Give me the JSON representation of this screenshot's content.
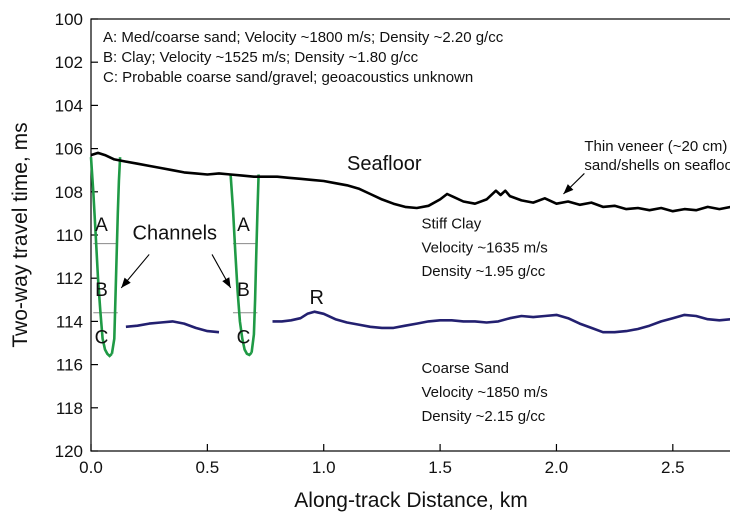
{
  "chart_data": {
    "type": "line",
    "xlabel": "Along-track Distance, km",
    "ylabel": "Two-way travel time, ms",
    "xlim": [
      0,
      2.75
    ],
    "ylim": [
      120,
      100
    ],
    "y_inverted": true,
    "grid": false,
    "x_ticks": [
      "0.0",
      "0.5",
      "1.0",
      "1.5",
      "2.0",
      "2.5"
    ],
    "x_tick_values": [
      0,
      0.5,
      1,
      1.5,
      2,
      2.5
    ],
    "y_ticks": [
      "100",
      "102",
      "104",
      "106",
      "108",
      "110",
      "112",
      "114",
      "116",
      "118",
      "120"
    ],
    "y_tick_values": [
      100,
      102,
      104,
      106,
      108,
      110,
      112,
      114,
      116,
      118,
      120
    ],
    "legend_notes": [
      "A: Med/coarse sand; Velocity ~1800 m/s; Density ~2.20 g/cc",
      "B: Clay; Velocity ~1525 m/s; Density ~1.80 g/cc",
      "C: Probable coarse sand/gravel; geoacoustics unknown"
    ],
    "series": [
      {
        "name": "Seafloor",
        "color": "#000000",
        "x": [
          0.0,
          0.03,
          0.06,
          0.1,
          0.15,
          0.2,
          0.25,
          0.3,
          0.35,
          0.4,
          0.45,
          0.5,
          0.55,
          0.6,
          0.65,
          0.7,
          0.75,
          0.8,
          0.85,
          0.9,
          0.95,
          1.0,
          1.05,
          1.1,
          1.15,
          1.2,
          1.25,
          1.3,
          1.35,
          1.4,
          1.45,
          1.5,
          1.53,
          1.56,
          1.6,
          1.65,
          1.7,
          1.74,
          1.76,
          1.78,
          1.8,
          1.85,
          1.9,
          1.95,
          2.0,
          2.05,
          2.1,
          2.15,
          2.2,
          2.25,
          2.3,
          2.35,
          2.4,
          2.45,
          2.5,
          2.55,
          2.6,
          2.65,
          2.7,
          2.75
        ],
        "y": [
          106.3,
          106.2,
          106.3,
          106.5,
          106.6,
          106.7,
          106.8,
          106.9,
          107.0,
          107.1,
          107.15,
          107.2,
          107.15,
          107.2,
          107.25,
          107.3,
          107.3,
          107.3,
          107.35,
          107.4,
          107.45,
          107.5,
          107.6,
          107.7,
          107.85,
          108.1,
          108.35,
          108.55,
          108.7,
          108.75,
          108.65,
          108.35,
          108.1,
          108.25,
          108.45,
          108.55,
          108.35,
          107.95,
          108.15,
          107.95,
          108.2,
          108.4,
          108.5,
          108.3,
          108.55,
          108.45,
          108.6,
          108.5,
          108.7,
          108.65,
          108.8,
          108.75,
          108.85,
          108.75,
          108.9,
          108.8,
          108.85,
          108.7,
          108.8,
          108.7
        ]
      },
      {
        "name": "R",
        "color": "#232070",
        "segments": [
          {
            "x": [
              0.15,
              0.2,
              0.25,
              0.3,
              0.35,
              0.4,
              0.45,
              0.5,
              0.55
            ],
            "y": [
              114.25,
              114.2,
              114.1,
              114.05,
              114.0,
              114.1,
              114.3,
              114.45,
              114.5
            ]
          },
          {
            "x": [
              0.78,
              0.82,
              0.86,
              0.9,
              0.93,
              0.96,
              1.0,
              1.05,
              1.1,
              1.15,
              1.2,
              1.25,
              1.3,
              1.35,
              1.4,
              1.45,
              1.5,
              1.55,
              1.6,
              1.65,
              1.7,
              1.75,
              1.8,
              1.85,
              1.9,
              1.95,
              2.0,
              2.05,
              2.1,
              2.15,
              2.2,
              2.25,
              2.3,
              2.35,
              2.4,
              2.45,
              2.5,
              2.55,
              2.6,
              2.65,
              2.7,
              2.75
            ],
            "y": [
              114.0,
              114.0,
              113.95,
              113.85,
              113.65,
              113.55,
              113.65,
              113.9,
              114.05,
              114.15,
              114.25,
              114.3,
              114.3,
              114.2,
              114.1,
              114.0,
              113.95,
              113.95,
              114.0,
              114.0,
              114.05,
              114.0,
              113.85,
              113.75,
              113.8,
              113.75,
              113.7,
              113.85,
              114.1,
              114.3,
              114.5,
              114.5,
              114.45,
              114.35,
              114.2,
              114.0,
              113.85,
              113.7,
              113.75,
              113.9,
              113.95,
              113.9
            ]
          }
        ]
      }
    ],
    "channels": [
      {
        "left_x": [
          0.0,
          0.01,
          0.02,
          0.03,
          0.04,
          0.05,
          0.06,
          0.07,
          0.08,
          0.09
        ],
        "left_y": [
          106.4,
          108.0,
          110.0,
          112.0,
          113.5,
          114.8,
          115.3,
          115.5,
          115.6,
          115.5
        ],
        "right_x": [
          0.09,
          0.1,
          0.105,
          0.11,
          0.115,
          0.12,
          0.125
        ],
        "right_y": [
          115.5,
          114.8,
          113.0,
          111.0,
          109.0,
          107.5,
          106.4
        ],
        "dividers_y": [
          110.4,
          113.6
        ],
        "divider_x": [
          0.01,
          0.115
        ],
        "labels": [
          "A",
          "B",
          "C"
        ],
        "label_x": 0.045,
        "label_y": [
          109.5,
          112.5,
          114.7
        ]
      },
      {
        "left_x": [
          0.6,
          0.61,
          0.62,
          0.63,
          0.64,
          0.65,
          0.66,
          0.67,
          0.68,
          0.69
        ],
        "left_y": [
          107.2,
          108.8,
          110.8,
          112.6,
          114.0,
          114.8,
          115.3,
          115.5,
          115.55,
          115.45
        ],
        "right_x": [
          0.69,
          0.7,
          0.705,
          0.71,
          0.715,
          0.72
        ],
        "right_y": [
          115.45,
          114.6,
          113.0,
          111.0,
          109.0,
          107.2
        ],
        "dividers_y": [
          110.4,
          113.6
        ],
        "divider_x": [
          0.61,
          0.715
        ],
        "labels": [
          "A",
          "B",
          "C"
        ],
        "label_x": 0.655,
        "label_y": [
          109.5,
          112.5,
          114.7
        ]
      }
    ],
    "annotations": [
      {
        "text": "Seafloor",
        "x": 1.1,
        "y": 107.0,
        "size": "big"
      },
      {
        "text": "Thin veneer (~20 cm)",
        "x": 2.12,
        "y": 106.1,
        "size": "normal"
      },
      {
        "text": "sand/shells on seafloor",
        "x": 2.12,
        "y": 107.0,
        "size": "normal"
      },
      {
        "text": "Stiff Clay",
        "x": 1.42,
        "y": 109.7,
        "size": "normal"
      },
      {
        "text": "Velocity ~1635 m/s",
        "x": 1.42,
        "y": 110.8,
        "size": "normal"
      },
      {
        "text": "Density ~1.95 g/cc",
        "x": 1.42,
        "y": 111.9,
        "size": "normal"
      },
      {
        "text": "Coarse Sand",
        "x": 1.42,
        "y": 116.4,
        "size": "normal"
      },
      {
        "text": "Velocity ~1850 m/s",
        "x": 1.42,
        "y": 117.5,
        "size": "normal"
      },
      {
        "text": "Density ~2.15 g/cc",
        "x": 1.42,
        "y": 118.6,
        "size": "normal"
      },
      {
        "text": "R",
        "x": 0.97,
        "y": 113.2,
        "size": "big"
      },
      {
        "text": "Channels",
        "x": 0.36,
        "y": 110.2,
        "size": "big"
      }
    ],
    "arrows": [
      {
        "from": [
          0.25,
          110.9
        ],
        "to": [
          0.13,
          112.45
        ]
      },
      {
        "from": [
          0.52,
          110.9
        ],
        "to": [
          0.6,
          112.45
        ]
      },
      {
        "from": [
          2.12,
          107.15
        ],
        "to": [
          2.03,
          108.1
        ]
      }
    ]
  }
}
